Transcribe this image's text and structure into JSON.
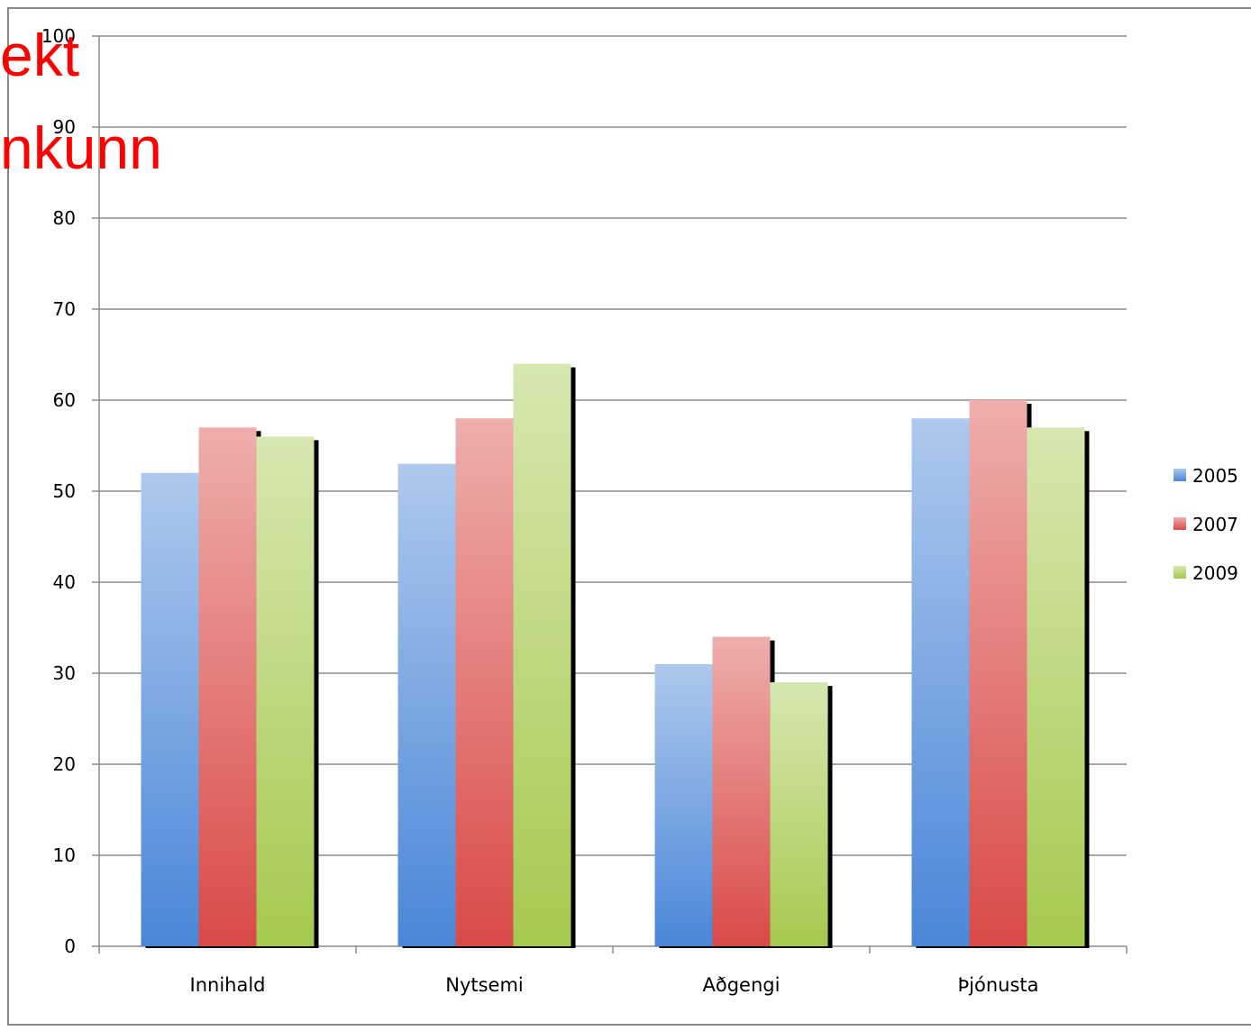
{
  "overlay_text": [
    "ekt",
    "nkunn"
  ],
  "chart_data": {
    "type": "bar",
    "categories": [
      "Innihald",
      "Nytsemi",
      "Aðgengi",
      "Þjónusta"
    ],
    "series": [
      {
        "name": "2005",
        "values": [
          52,
          53,
          31,
          58
        ],
        "color": "#4a86d8"
      },
      {
        "name": "2007",
        "values": [
          57,
          58,
          34,
          60
        ],
        "color": "#d94a47"
      },
      {
        "name": "2009",
        "values": [
          56,
          64,
          29,
          57
        ],
        "color": "#a6c94f"
      }
    ],
    "ylim": [
      0,
      100
    ],
    "yticks": [
      0,
      10,
      20,
      30,
      40,
      50,
      60,
      70,
      80,
      90,
      100
    ],
    "grid": true,
    "legend": "right"
  }
}
